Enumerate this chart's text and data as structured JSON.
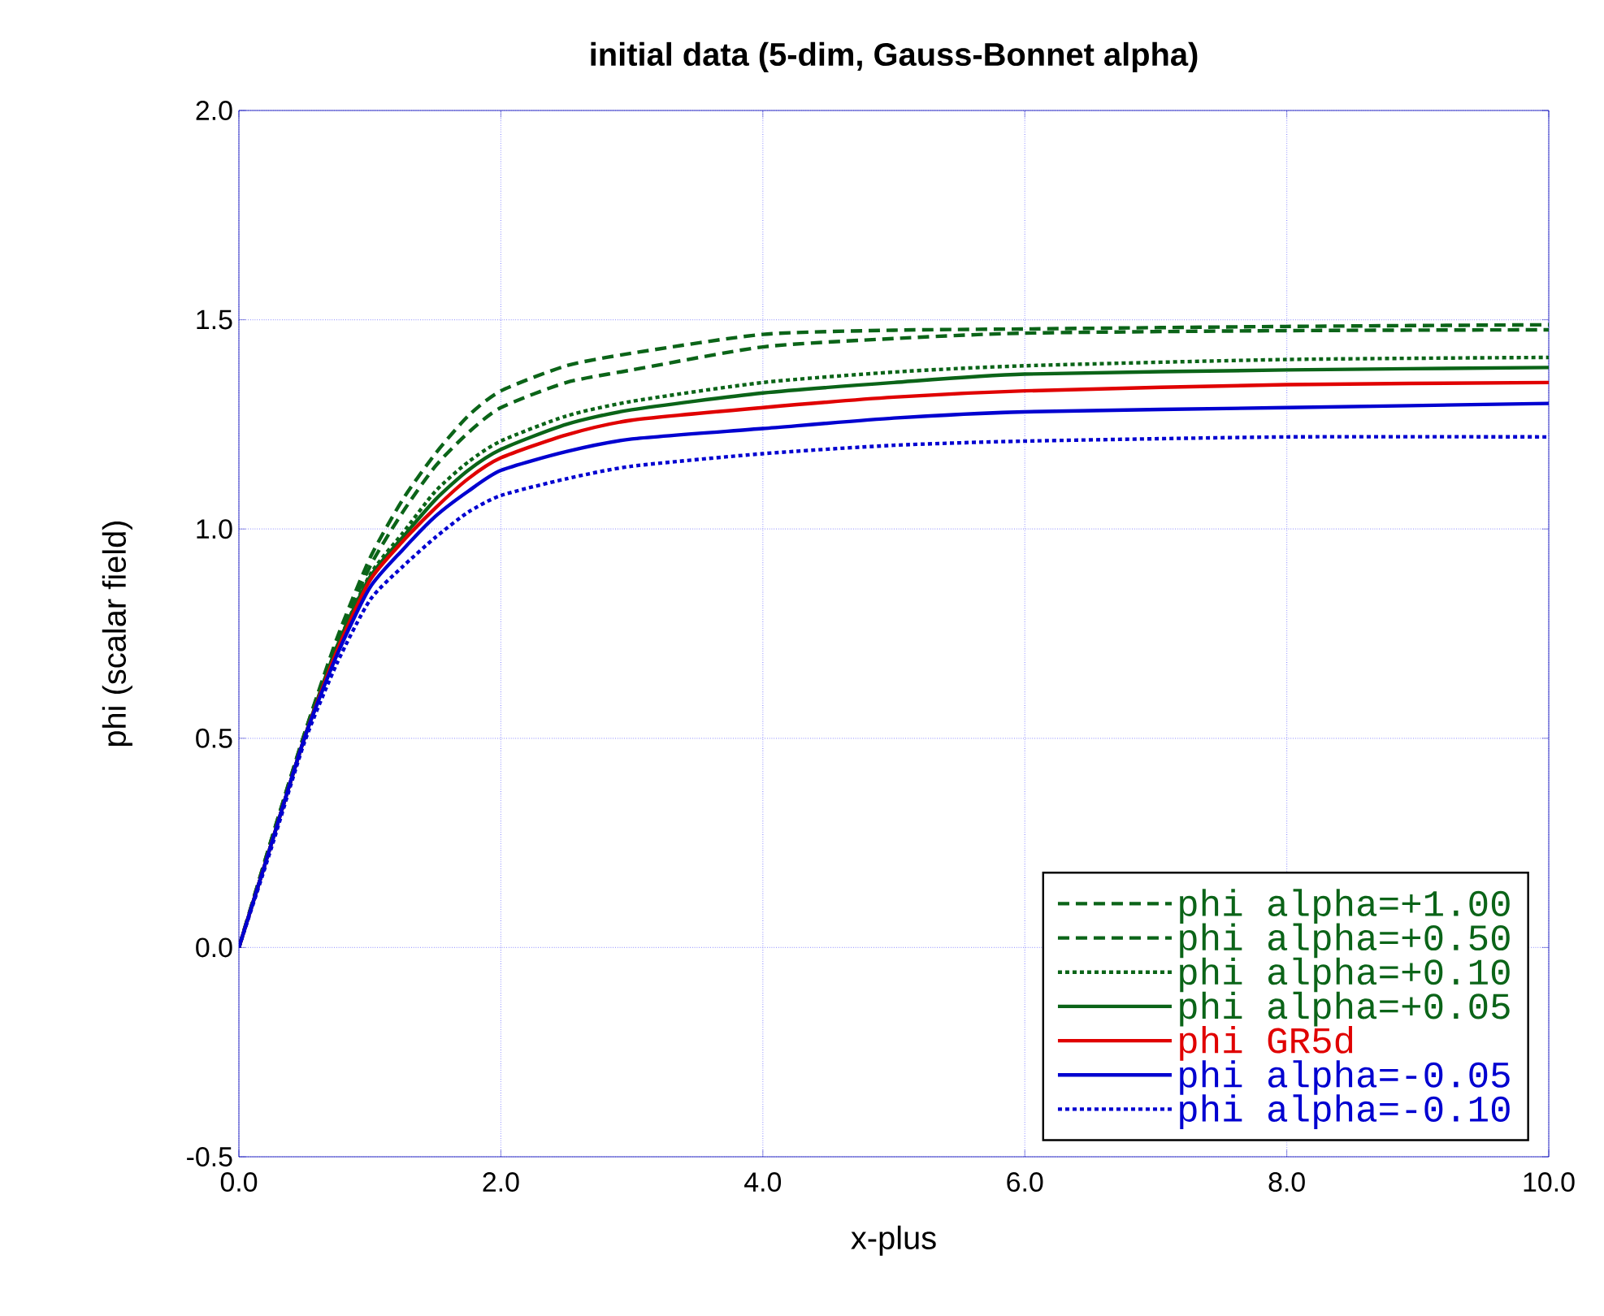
{
  "chart_data": {
    "type": "line",
    "title": "initial data (5-dim, Gauss-Bonnet alpha)",
    "xlabel": "x-plus",
    "ylabel": "phi (scalar field)",
    "x": [
      0,
      0.25,
      0.5,
      0.75,
      1,
      1.25,
      1.5,
      1.75,
      2,
      2.5,
      3,
      4,
      5,
      6,
      8,
      10
    ],
    "series": [
      {
        "name": "phi alpha=+1.00",
        "color": "#0b6418",
        "line_style": "dashed",
        "values": [
          0,
          0.26,
          0.51,
          0.74,
          0.93,
          1.07,
          1.18,
          1.27,
          1.33,
          1.39,
          1.42,
          1.465,
          1.475,
          1.478,
          1.484,
          1.488
        ]
      },
      {
        "name": "phi alpha=+0.50",
        "color": "#0b6418",
        "line_style": "dashed",
        "values": [
          0,
          0.26,
          0.51,
          0.73,
          0.91,
          1.04,
          1.15,
          1.23,
          1.29,
          1.35,
          1.38,
          1.435,
          1.455,
          1.468,
          1.474,
          1.476
        ]
      },
      {
        "name": "phi alpha=+0.10",
        "color": "#0b6418",
        "line_style": "dotted",
        "values": [
          0,
          0.25,
          0.5,
          0.72,
          0.89,
          0.99,
          1.09,
          1.16,
          1.21,
          1.27,
          1.305,
          1.35,
          1.375,
          1.39,
          1.405,
          1.41
        ]
      },
      {
        "name": "phi alpha=+0.05",
        "color": "#0b6418",
        "line_style": "solid",
        "values": [
          0,
          0.25,
          0.5,
          0.72,
          0.885,
          0.98,
          1.07,
          1.14,
          1.19,
          1.25,
          1.285,
          1.325,
          1.35,
          1.37,
          1.38,
          1.386
        ]
      },
      {
        "name": "phi GR5d",
        "color": "#e00000",
        "line_style": "solid",
        "values": [
          0,
          0.25,
          0.5,
          0.71,
          0.877,
          0.97,
          1.05,
          1.12,
          1.17,
          1.225,
          1.26,
          1.29,
          1.315,
          1.33,
          1.345,
          1.35
        ]
      },
      {
        "name": "phi alpha=-0.05",
        "color": "#0000d0",
        "line_style": "solid",
        "values": [
          0,
          0.25,
          0.5,
          0.7,
          0.86,
          0.95,
          1.03,
          1.09,
          1.14,
          1.185,
          1.215,
          1.24,
          1.265,
          1.28,
          1.29,
          1.3
        ]
      },
      {
        "name": "phi alpha=-0.10",
        "color": "#0000d0",
        "line_style": "dotted",
        "values": [
          0,
          0.24,
          0.49,
          0.68,
          0.83,
          0.91,
          0.98,
          1.04,
          1.08,
          1.12,
          1.15,
          1.18,
          1.2,
          1.21,
          1.22,
          1.22
        ]
      }
    ],
    "xlim": [
      0,
      10
    ],
    "ylim": [
      -0.5,
      2.0
    ],
    "xticks": [
      {
        "value": 0,
        "label": "0.0"
      },
      {
        "value": 2,
        "label": "2.0"
      },
      {
        "value": 4,
        "label": "4.0"
      },
      {
        "value": 6,
        "label": "6.0"
      },
      {
        "value": 8,
        "label": "8.0"
      },
      {
        "value": 10,
        "label": "10.0"
      }
    ],
    "yticks": [
      {
        "value": -0.5,
        "label": "-0.5"
      },
      {
        "value": 0,
        "label": "0.0"
      },
      {
        "value": 0.5,
        "label": "0.5"
      },
      {
        "value": 1.0,
        "label": "1.0"
      },
      {
        "value": 1.5,
        "label": "1.5"
      },
      {
        "value": 2.0,
        "label": "2.0"
      }
    ],
    "grid": true,
    "legend": "bottom right",
    "marker": "none"
  }
}
